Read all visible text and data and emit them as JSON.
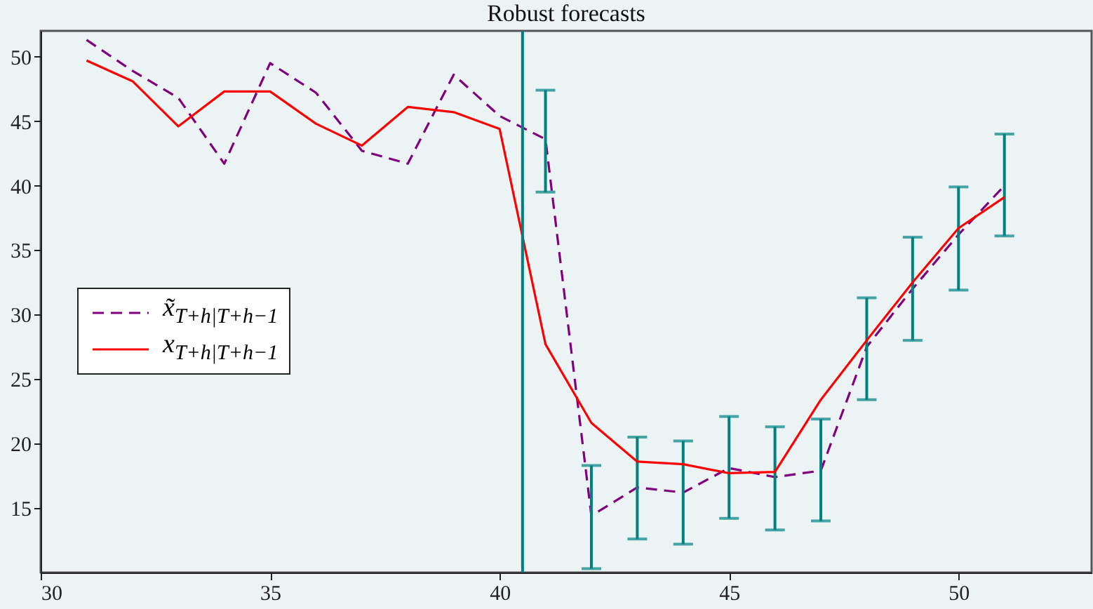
{
  "chart_data": {
    "type": "line",
    "title": "Robust forecasts",
    "x": [
      31,
      32,
      33,
      34,
      35,
      36,
      37,
      38,
      39,
      40,
      41,
      42,
      43,
      44,
      45,
      46,
      47,
      48,
      49,
      50,
      51
    ],
    "series": [
      {
        "name": "x̃$_{T+h|T+h−1}$",
        "color": "#800080",
        "line_style": "dashed",
        "values": [
          51.3,
          48.9,
          46.8,
          41.7,
          49.5,
          47.2,
          42.7,
          41.7,
          48.6,
          45.4,
          43.6,
          14.4,
          16.6,
          16.2,
          18.1,
          17.4,
          17.9,
          27.5,
          32.0,
          36.2,
          40.0
        ],
        "errors": [
          null,
          null,
          null,
          null,
          null,
          null,
          null,
          null,
          null,
          null,
          [
            39.5,
            47.4
          ],
          [
            10.3,
            18.3
          ],
          [
            12.6,
            20.5
          ],
          [
            12.2,
            20.2
          ],
          [
            14.2,
            22.1
          ],
          [
            13.3,
            21.3
          ],
          [
            14.0,
            21.9
          ],
          [
            23.4,
            31.3
          ],
          [
            28.0,
            36.0
          ],
          [
            31.9,
            39.9
          ],
          [
            36.1,
            44.0
          ]
        ]
      },
      {
        "name": "x$_{T+h|T+h−1}$",
        "color": "#ff0000",
        "line_style": "solid",
        "values": [
          49.7,
          48.1,
          44.6,
          47.3,
          47.3,
          44.8,
          43.1,
          46.1,
          45.7,
          44.4,
          27.7,
          21.6,
          18.6,
          18.4,
          17.7,
          17.8,
          23.4,
          28.0,
          32.5,
          36.7,
          39.1
        ]
      }
    ],
    "ref_lines": [
      {
        "axis": "x",
        "value": 40.5,
        "color": "#008080"
      }
    ],
    "xlim": [
      30,
      52.9
    ],
    "xticks": [
      30,
      35,
      40,
      45,
      50
    ],
    "ylim": [
      10,
      52
    ],
    "yticks": [
      15,
      20,
      25,
      30,
      35,
      40,
      45,
      50
    ],
    "grid": false,
    "legend": "left"
  }
}
